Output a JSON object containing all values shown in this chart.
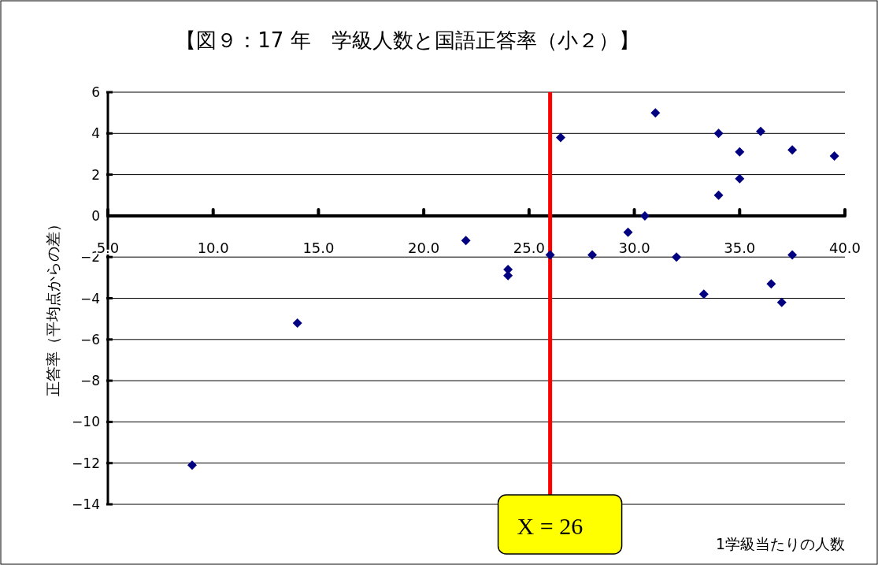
{
  "chart_data": {
    "type": "scatter",
    "title": "【図９：17 年　学級人数と国語正答率（小２）】",
    "xlabel": "1学級当たりの人数",
    "ylabel": "正答率（平均点からの差）",
    "xlim": [
      5,
      40
    ],
    "ylim": [
      -14,
      6
    ],
    "xticks": [
      {
        "value": 5,
        "label": "5.0"
      },
      {
        "value": 10,
        "label": "10.0"
      },
      {
        "value": 15,
        "label": "15.0"
      },
      {
        "value": 20,
        "label": "20.0"
      },
      {
        "value": 25,
        "label": "25.0"
      },
      {
        "value": 30,
        "label": "30.0"
      },
      {
        "value": 35,
        "label": "35.0"
      },
      {
        "value": 40,
        "label": "40.0"
      }
    ],
    "yticks": [
      6,
      4,
      2,
      0,
      {
        "value": -2,
        "label": "−2"
      },
      {
        "value": -4,
        "label": "−4"
      },
      {
        "value": -6,
        "label": "−6"
      },
      {
        "value": -8,
        "label": "−8"
      },
      {
        "value": -10,
        "label": "−10"
      },
      {
        "value": -12,
        "label": "−12"
      },
      {
        "value": -14,
        "label": "−14"
      }
    ],
    "grid": "y",
    "marker": "diamond",
    "series": [
      {
        "color": "#000080",
        "x": [
          9.0,
          14.0,
          22.0,
          24.0,
          24.0,
          26.0,
          26.5,
          28.0,
          29.7,
          30.5,
          31.0,
          32.0,
          33.3,
          34.0,
          34.0,
          35.0,
          35.0,
          36.0,
          36.5,
          37.0,
          37.5,
          37.5,
          39.5
        ],
        "values": [
          -12.1,
          -5.2,
          -1.2,
          -2.6,
          -2.9,
          -1.9,
          3.8,
          -1.9,
          -0.8,
          0.0,
          5.0,
          -2.0,
          -3.8,
          1.0,
          4.0,
          3.1,
          1.8,
          4.1,
          -3.3,
          -4.2,
          3.2,
          -1.9,
          2.9
        ]
      }
    ],
    "ref_lines": [
      {
        "axis": "x",
        "value": 26,
        "label": "X = 26",
        "color": "#ff0000"
      }
    ]
  }
}
